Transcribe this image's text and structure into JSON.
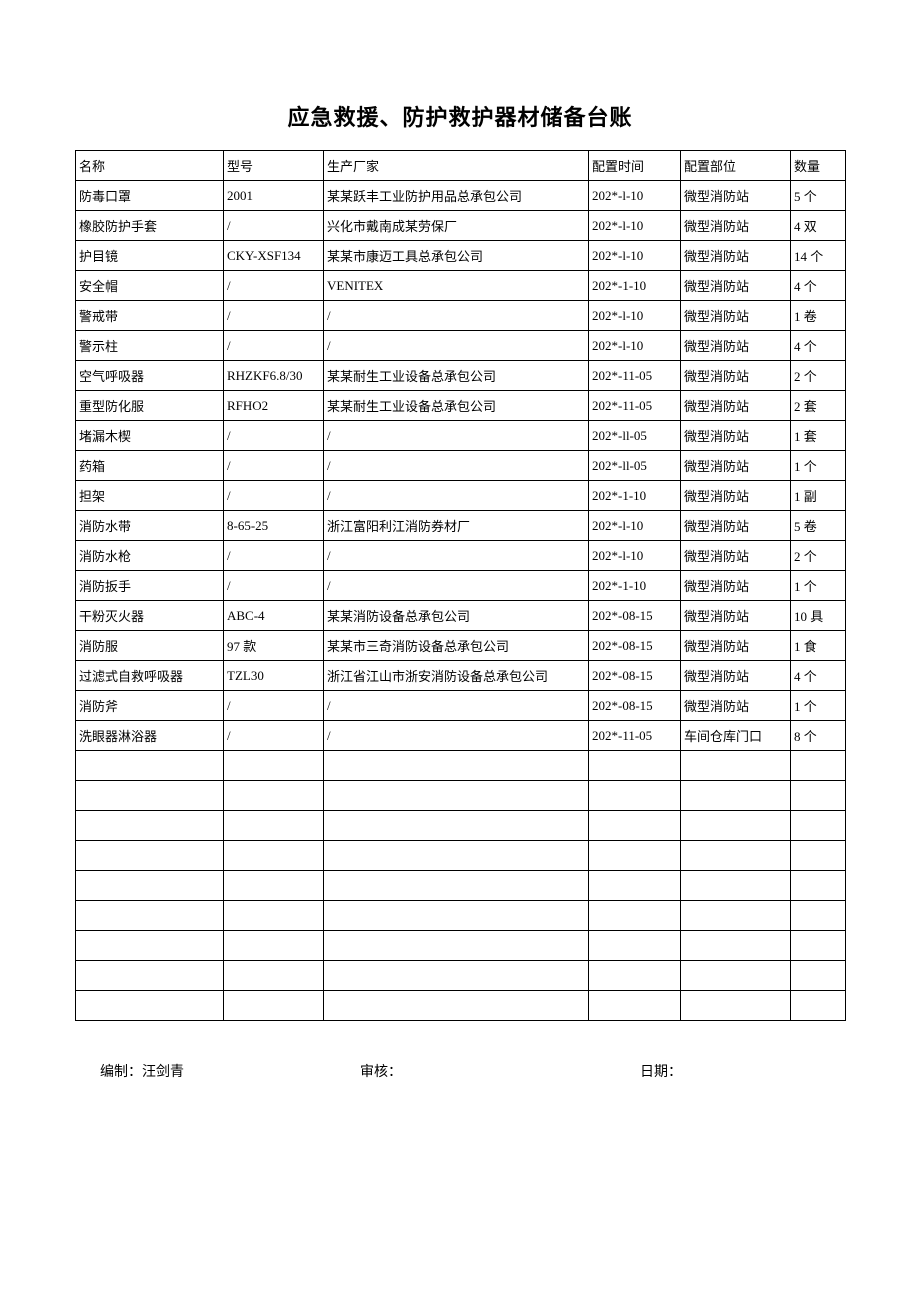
{
  "title": "应急救援、防护救护器材储备台账",
  "columns": [
    "名称",
    "型号",
    "生产厂家",
    "配置时间",
    "配置部位",
    "数量"
  ],
  "rows": [
    [
      "防毒口罩",
      "2001",
      "某某跃丰工业防护用品总承包公司",
      "202*-l-10",
      "微型消防站",
      "5 个"
    ],
    [
      "橡胶防护手套",
      "/",
      "兴化市戴南成某劳保厂",
      "202*-l-10",
      "微型消防站",
      "4 双"
    ],
    [
      "护目镜",
      "CKY-XSF134",
      "某某市康迈工具总承包公司",
      "202*-l-10",
      "微型消防站",
      "14 个"
    ],
    [
      "安全帽",
      "/",
      "VENITEX",
      "202*-1-10",
      "微型消防站",
      "4 个"
    ],
    [
      "警戒带",
      "/",
      "/",
      "202*-l-10",
      "微型消防站",
      "1 卷"
    ],
    [
      "警示柱",
      "/",
      "/",
      "202*-l-10",
      "微型消防站",
      "4 个"
    ],
    [
      "空气呼吸器",
      "RHZKF6.8/30",
      "某某耐生工业设备总承包公司",
      "202*-11-05",
      "微型消防站",
      "2 个"
    ],
    [
      "重型防化服",
      "RFHO2",
      "某某耐生工业设备总承包公司",
      "202*-11-05",
      "微型消防站",
      "2 套"
    ],
    [
      "堵漏木楔",
      "/",
      "/",
      "202*-ll-05",
      "微型消防站",
      "1 套"
    ],
    [
      "药箱",
      "/",
      "/",
      "202*-ll-05",
      "微型消防站",
      "1 个"
    ],
    [
      "担架",
      "/",
      "/",
      "202*-1-10",
      "微型消防站",
      "1 副"
    ],
    [
      "消防水带",
      "8-65-25",
      "浙江富阳利江消防券材厂",
      "202*-l-10",
      "微型消防站",
      "5 卷"
    ],
    [
      "消防水枪",
      "/",
      "/",
      "202*-l-10",
      "微型消防站",
      "2 个"
    ],
    [
      "消防扳手",
      "/",
      "/",
      "202*-1-10",
      "微型消防站",
      "1 个"
    ],
    [
      "干粉灭火器",
      "ABC-4",
      "某某消防设备总承包公司",
      "202*-08-15",
      "微型消防站",
      "10 具"
    ],
    [
      "消防服",
      "97 款",
      "某某市三奇消防设备总承包公司",
      "202*-08-15",
      "微型消防站",
      "1 食"
    ],
    [
      "过滤式自救呼吸器",
      "TZL30",
      "浙江省江山市浙安消防设备总承包公司",
      "202*-08-15",
      "微型消防站",
      "4 个"
    ],
    [
      "消防斧",
      "/",
      "/",
      "202*-08-15",
      "微型消防站",
      "1 个"
    ],
    [
      "洗眼器淋浴器",
      "/",
      "/",
      "202*-11-05",
      "车间仓库门口",
      "8 个"
    ]
  ],
  "empty_rows": 9,
  "footer": {
    "prepared_by_label": "编制：",
    "prepared_by_value": "汪剑青",
    "reviewed_by_label": "审核：",
    "date_label": "日期："
  }
}
